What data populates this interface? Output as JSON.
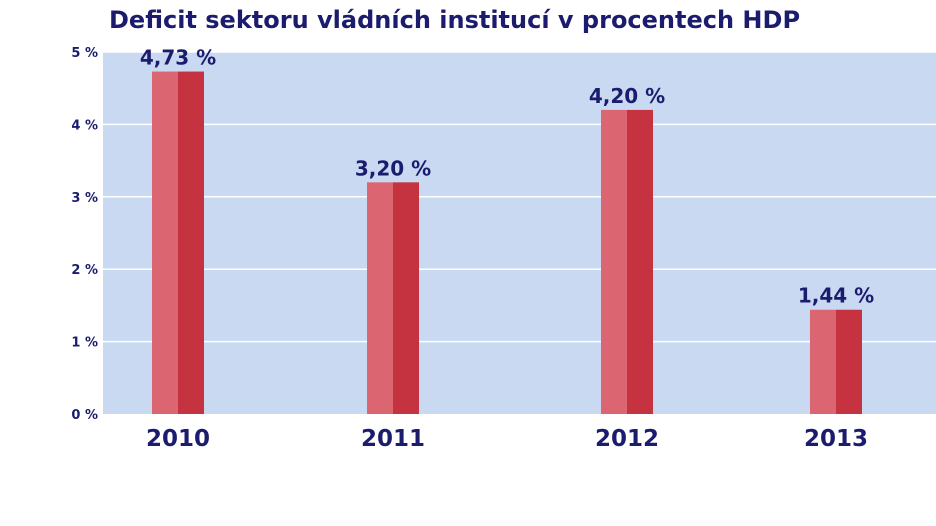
{
  "chart_data": {
    "type": "bar",
    "title": "Deficit sektoru vládních institucí v procentech HDP",
    "categories": [
      "2010",
      "2011",
      "2012",
      "2013"
    ],
    "values": [
      4.73,
      3.2,
      4.2,
      1.44
    ],
    "data_labels": [
      "4,73 %",
      "3,20 %",
      "4,20 %",
      "1,44 %"
    ],
    "y_ticks": [
      0,
      1,
      2,
      3,
      4,
      5
    ],
    "y_tick_labels": [
      "0 %",
      "1 %",
      "2 %",
      "3 %",
      "4 %",
      "5 %"
    ],
    "ylim": [
      0,
      5
    ],
    "grid": true,
    "legend": "none",
    "colors": {
      "plot_background": "#c8d9f1",
      "gridline": "#ffffff",
      "bar_left": "#dc6572",
      "bar_right": "#c63340",
      "text": "#1c1c6e"
    }
  }
}
